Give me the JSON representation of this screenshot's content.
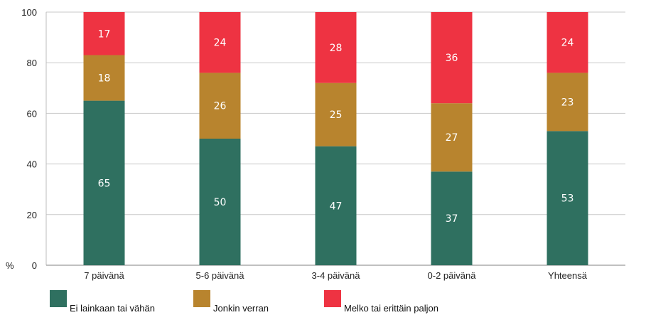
{
  "chart_data": {
    "type": "bar",
    "stacked": true,
    "categories": [
      "7 päivänä",
      "5-6 päivänä",
      "3-4 päivänä",
      "0-2 päivänä",
      "Yhteensä"
    ],
    "series": [
      {
        "name": "Ei lainkaan tai vähän",
        "color": "#2f7060",
        "values": [
          65,
          50,
          47,
          37,
          53
        ]
      },
      {
        "name": "Jonkin verran",
        "color": "#b8842e",
        "values": [
          18,
          26,
          25,
          27,
          23
        ]
      },
      {
        "name": "Melko tai erittäin paljon",
        "color": "#ee3342",
        "values": [
          17,
          24,
          28,
          36,
          24
        ]
      }
    ],
    "y_ticks": [
      "0",
      "20",
      "40",
      "60",
      "80",
      "100"
    ],
    "ylabel": "%",
    "ylim": [
      0,
      100
    ],
    "grid": true,
    "legend_position": "bottom"
  }
}
